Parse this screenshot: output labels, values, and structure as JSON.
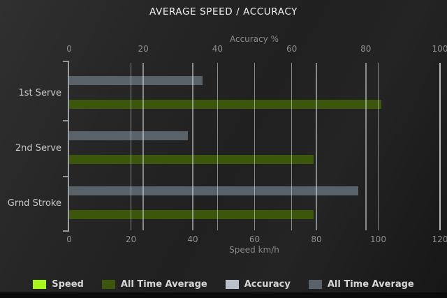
{
  "chart_data": {
    "type": "bar",
    "orientation": "horizontal",
    "title": "AVERAGE SPEED / ACCURACY",
    "categories": [
      "1st Serve",
      "2nd Serve",
      "Grnd Stroke"
    ],
    "series": [
      {
        "name": "Speed",
        "color": "#a7f71d",
        "axis": "speed",
        "values": [
          null,
          null,
          null
        ]
      },
      {
        "name": "All Time Average",
        "color": "#3c570b",
        "axis": "speed",
        "values": [
          101,
          79,
          79
        ]
      },
      {
        "name": "Accuracy",
        "color": "#b9c0c8",
        "axis": "accuracy",
        "values": [
          null,
          null,
          null
        ]
      },
      {
        "name": "All Time Average",
        "color": "#596269",
        "axis": "accuracy",
        "values": [
          36,
          32,
          78
        ]
      }
    ],
    "axes": {
      "top": {
        "label": "Accuracy %",
        "ticks": [
          0,
          20,
          40,
          60,
          80,
          100
        ],
        "min": 0,
        "max": 100
      },
      "bottom": {
        "label": "Speed km/h",
        "ticks": [
          0,
          20,
          40,
          60,
          80,
          100,
          120
        ],
        "min": 0,
        "max": 120
      }
    },
    "legend": {
      "position": "bottom",
      "items": [
        "Speed",
        "All Time Average",
        "Accuracy",
        "All Time Average"
      ]
    },
    "grid": true,
    "background": "#222222",
    "text_color": "#d6d6d6"
  }
}
